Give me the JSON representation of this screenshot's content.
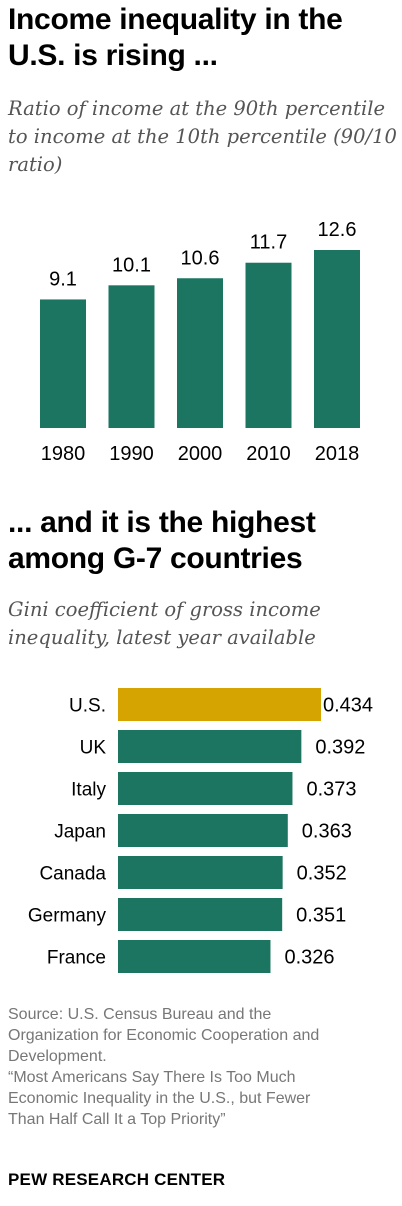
{
  "header1": {
    "title": "Income inequality in the U.S. is rising ...",
    "subtitle": "Ratio of income at the 90th percentile to income at the 10th percentile (90/10 ratio)"
  },
  "header2": {
    "title": "... and it is the highest among G-7 countries",
    "subtitle": "Gini coefficient of gross income inequality, latest year available"
  },
  "chart_data": [
    {
      "type": "bar",
      "orientation": "vertical",
      "categories": [
        "1980",
        "1990",
        "2000",
        "2010",
        "2018"
      ],
      "values": [
        9.1,
        10.1,
        10.6,
        11.7,
        12.6
      ],
      "value_labels": [
        "9.1",
        "10.1",
        "10.6",
        "11.7",
        "12.6"
      ],
      "ylim": [
        0,
        12.6
      ],
      "color": "#1b7561",
      "grid": false
    },
    {
      "type": "bar",
      "orientation": "horizontal",
      "categories": [
        "U.S.",
        "UK",
        "Italy",
        "Japan",
        "Canada",
        "Germany",
        "France"
      ],
      "values": [
        0.434,
        0.392,
        0.373,
        0.363,
        0.352,
        0.351,
        0.326
      ],
      "value_labels": [
        "0.434",
        "0.392",
        "0.373",
        "0.363",
        "0.352",
        "0.351",
        "0.326"
      ],
      "colors": [
        "#d6a400",
        "#1b7561",
        "#1b7561",
        "#1b7561",
        "#1b7561",
        "#1b7561",
        "#1b7561"
      ],
      "xlim": [
        0,
        0.434
      ],
      "grid": false
    }
  ],
  "footer": {
    "source_lines": [
      "Source: U.S. Census Bureau and the",
      "Organization for Economic Cooperation and",
      "Development.",
      "“Most Americans Say There Is Too Much",
      "Economic Inequality in the U.S., but Fewer",
      "Than Half Call It a Top Priority”"
    ],
    "brand": "PEW RESEARCH CENTER"
  }
}
